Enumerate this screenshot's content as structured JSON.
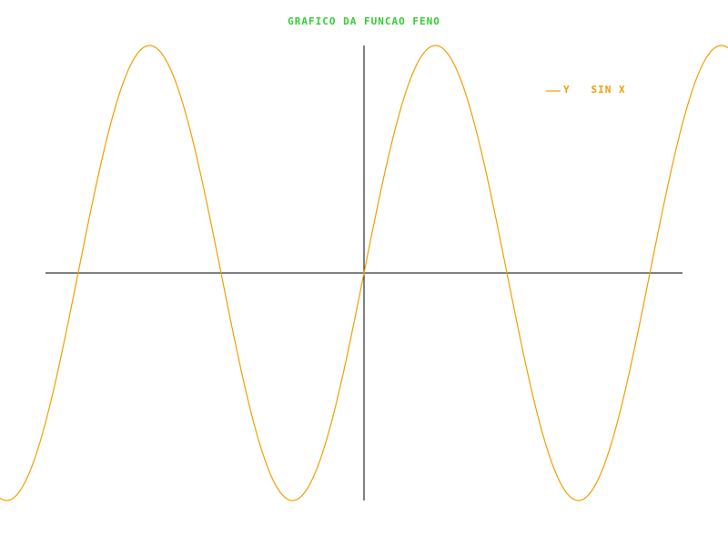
{
  "chart_data": {
    "type": "line",
    "title": "GRAFICO DA FUNCAO FENO",
    "xlabel": "",
    "ylabel": "",
    "xlim": [
      -8,
      8
    ],
    "ylim": [
      -1,
      1
    ],
    "grid": false,
    "legend_position": "top-right",
    "title_color": "#33cc33",
    "axis_color": "#000000",
    "series": [
      {
        "name": "Y   SIN X",
        "function": "sin",
        "color": "#f0a000",
        "x": [
          -8,
          -7.5,
          -7,
          -6.5,
          -6,
          -5.5,
          -5,
          -4.5,
          -4,
          -3.5,
          -3,
          -2.5,
          -2,
          -1.5,
          -1,
          -0.5,
          0,
          0.5,
          1,
          1.5,
          2,
          2.5,
          3,
          3.5,
          4,
          4.5,
          5,
          5.5,
          6,
          6.5,
          7,
          7.5,
          8
        ],
        "y": [
          -0.989,
          -0.938,
          -0.657,
          -0.215,
          0.279,
          0.706,
          0.959,
          0.978,
          0.757,
          0.351,
          -0.141,
          -0.598,
          -0.909,
          -0.997,
          -0.841,
          -0.479,
          0,
          0.479,
          0.841,
          0.997,
          0.909,
          0.598,
          0.141,
          -0.351,
          -0.757,
          -0.978,
          -0.959,
          -0.706,
          -0.279,
          0.215,
          0.657,
          0.938,
          0.989
        ]
      }
    ]
  }
}
